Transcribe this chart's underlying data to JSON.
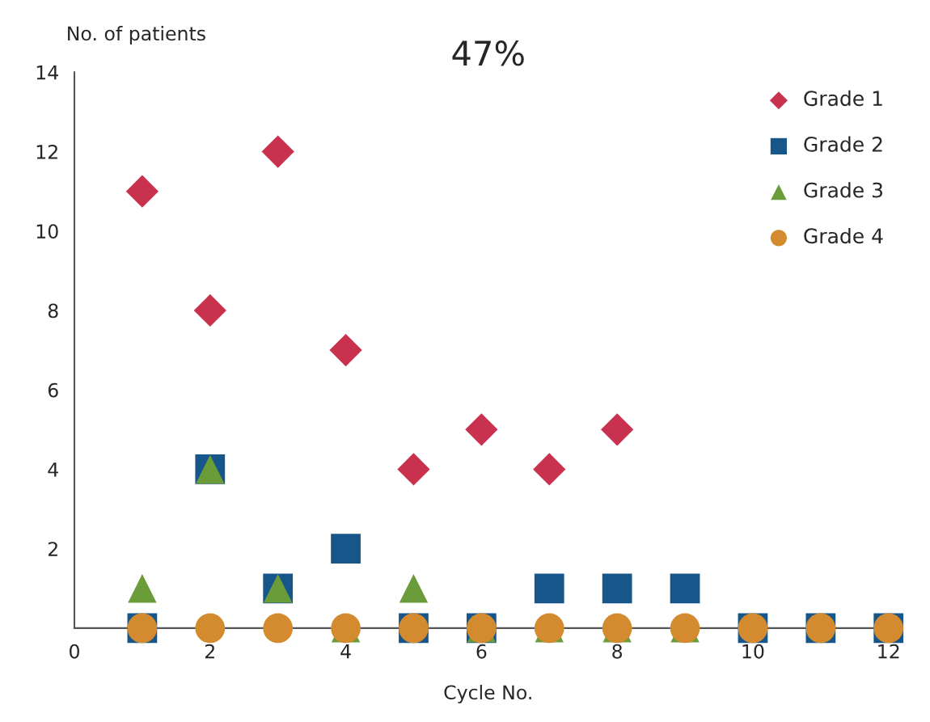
{
  "chart_data": {
    "type": "scatter",
    "title": "47%",
    "xlabel": "Cycle No.",
    "ylabel": "No. of patients",
    "xlim": [
      0,
      12.2
    ],
    "xticks": [
      0,
      2,
      4,
      6,
      8,
      10,
      12
    ],
    "ylim": [
      0,
      14
    ],
    "yticks": [
      2,
      4,
      6,
      8,
      10,
      12,
      14
    ],
    "grid": false,
    "legend": "top right",
    "series": [
      {
        "name": "Grade 1",
        "color": "#c8324f",
        "marker": "diamond",
        "x": [
          1,
          2,
          3,
          4,
          5,
          6,
          7,
          8
        ],
        "values": [
          11,
          8,
          12,
          7,
          4,
          5,
          4,
          5
        ]
      },
      {
        "name": "Grade 2",
        "color": "#17568a",
        "marker": "square",
        "x": [
          1,
          2,
          3,
          4,
          5,
          6,
          7,
          8,
          9,
          10,
          11,
          12
        ],
        "values": [
          0,
          4,
          1,
          2,
          0,
          0,
          1,
          1,
          1,
          0,
          0,
          0
        ]
      },
      {
        "name": "Grade 3",
        "color": "#6a9c3a",
        "marker": "triangle",
        "x": [
          1,
          2,
          3,
          4,
          5,
          6,
          7,
          8,
          9
        ],
        "values": [
          1,
          4,
          1,
          0,
          1,
          0,
          0,
          0,
          0
        ]
      },
      {
        "name": "Grade 4",
        "color": "#d48a2e",
        "marker": "circle",
        "x": [
          1,
          2,
          3,
          4,
          5,
          6,
          7,
          8,
          9,
          10,
          11,
          12
        ],
        "values": [
          0,
          0,
          0,
          0,
          0,
          0,
          0,
          0,
          0,
          0,
          0,
          0
        ]
      }
    ]
  }
}
